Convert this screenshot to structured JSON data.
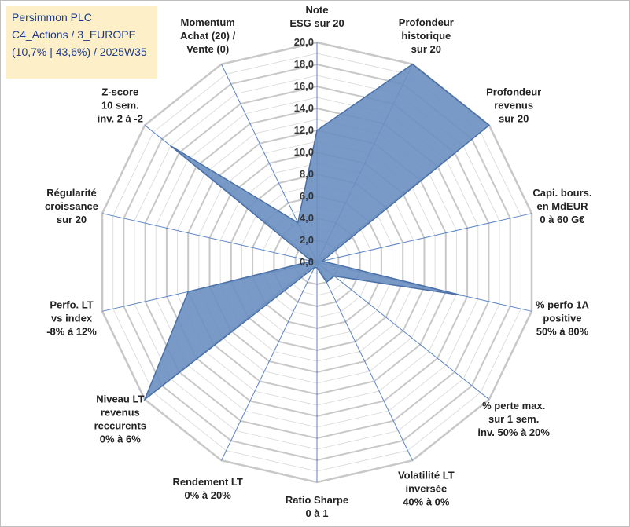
{
  "header": {
    "lines": [
      "Persimmon PLC",
      "C4_Actions / 3_EUROPE",
      "(10,7% | 43,6%) / 2025W35"
    ]
  },
  "chart_data": {
    "type": "radar",
    "title": "Persimmon PLC",
    "rlim": [
      0,
      20
    ],
    "rticks": [
      "0,0",
      "2,0",
      "4,0",
      "6,0",
      "8,0",
      "10,0",
      "12,0",
      "14,0",
      "16,0",
      "18,0",
      "20,0"
    ],
    "categories": [
      "Note\nESG sur 20",
      "Profondeur\nhistorique\nsur 20",
      "Profondeur\nrevenus\nsur 20",
      "Capi. bours.\nen MdEUR\n0 à 60 G€",
      "% perfo 1A\npositive\n50% à 80%",
      "% perte max.\nsur 1 sem.\ninv. 50% à 20%",
      "Volatilité LT\ninversée\n40% à 0%",
      "Ratio Sharpe\n0 à 1",
      "Rendement LT\n0% à 20%",
      "Niveau LT\nrevenus\nreccurents\n0% à 6%",
      "Perfo. LT\nvs index\n-8% à 12%",
      "Régularité\ncroissance\nsur 20",
      "Z-score\n10 sem.\ninv. 2 à -2",
      "Momentum\nAchat (20) /\nVente (0)"
    ],
    "series": [
      {
        "values": [
          12,
          20,
          20,
          0.5,
          13.5,
          2,
          2,
          0.5,
          0.5,
          20,
          12,
          0.5,
          17,
          4
        ]
      }
    ],
    "colors": {
      "fill": "#6a8fc0",
      "stroke": "#4a70a8",
      "grid": "#c8c8c8",
      "spoke": "#5b84c4"
    },
    "grid": true,
    "legend": "none"
  }
}
